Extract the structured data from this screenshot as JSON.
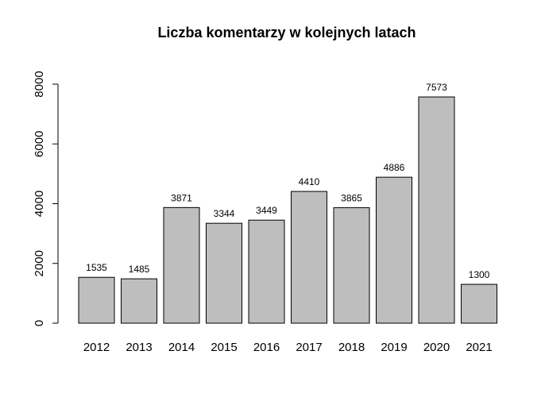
{
  "chart_data": {
    "type": "bar",
    "title": "Liczba komentarzy w kolejnych latach",
    "xlabel": "",
    "ylabel": "",
    "categories": [
      "2012",
      "2013",
      "2014",
      "2015",
      "2016",
      "2017",
      "2018",
      "2019",
      "2020",
      "2021"
    ],
    "values": [
      1535,
      1485,
      3871,
      3344,
      3449,
      4410,
      3865,
      4886,
      7573,
      1300
    ],
    "data_labels": [
      "1535",
      "1485",
      "3871",
      "3344",
      "3449",
      "4410",
      "3865",
      "4886",
      "7573",
      "1300"
    ],
    "ylim": [
      0,
      8000
    ],
    "yticks": [
      0,
      2000,
      4000,
      6000,
      8000
    ],
    "ytick_labels": [
      "0",
      "2000",
      "4000",
      "6000",
      "8000"
    ],
    "grid": false,
    "legend": "none",
    "colors": {
      "bar_fill": "#bebebe",
      "bar_stroke": "#000000"
    }
  }
}
